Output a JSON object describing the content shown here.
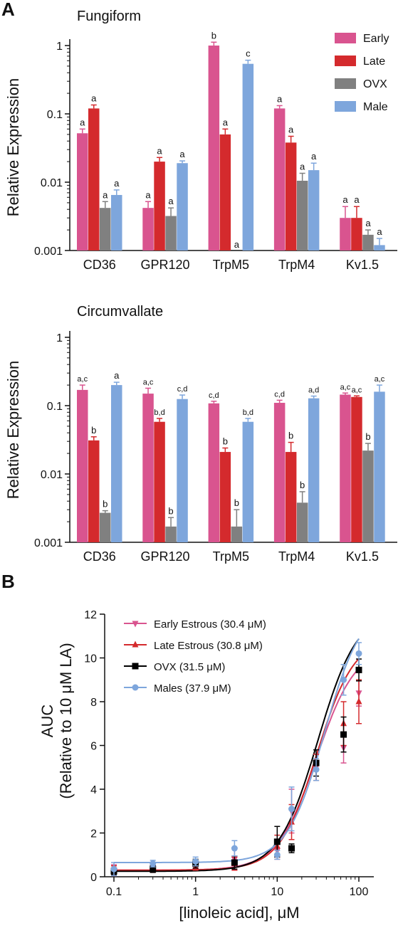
{
  "panel_labels": {
    "a": "A",
    "b": "B"
  },
  "chart_data": [
    {
      "type": "bar",
      "title": "Fungiform",
      "ylabel": "Relative Expression",
      "yscale": "log",
      "ylim": [
        0.001,
        1
      ],
      "yticks": [
        "0.001",
        "0.01",
        "0.1",
        "1"
      ],
      "categories": [
        "CD36",
        "GPR120",
        "TrpM5",
        "TrpM4",
        "Kv1.5"
      ],
      "legend_position": "top-right",
      "series": [
        {
          "name": "Early",
          "color": "#d9548f",
          "values": [
            0.052,
            0.0042,
            1.0,
            0.12,
            0.003
          ],
          "errors": [
            0.008,
            0.001,
            0.12,
            0.012,
            0.0014
          ],
          "labels": [
            "a",
            "a",
            "b",
            "a",
            "a"
          ]
        },
        {
          "name": "Late",
          "color": "#d42a2d",
          "values": [
            0.12,
            0.02,
            0.05,
            0.038,
            0.003
          ],
          "errors": [
            0.015,
            0.003,
            0.01,
            0.009,
            0.0014
          ],
          "labels": [
            "a",
            "a",
            "a",
            "a",
            "a"
          ]
        },
        {
          "name": "OVX",
          "color": "#808080",
          "values": [
            0.0042,
            0.0032,
            null,
            0.0105,
            0.0017
          ],
          "errors": [
            0.001,
            0.001,
            null,
            0.003,
            0.0003
          ],
          "labels": [
            "a",
            "a",
            "a",
            "a",
            "a"
          ]
        },
        {
          "name": "Male",
          "color": "#7ea6dc",
          "values": [
            0.0065,
            0.019,
            0.54,
            0.015,
            0.0012
          ],
          "errors": [
            0.0012,
            0.0015,
            0.07,
            0.004,
            0.0003
          ],
          "labels": [
            "a",
            "a",
            "c",
            "a",
            "a"
          ]
        }
      ]
    },
    {
      "type": "bar",
      "title": "Circumvallate",
      "ylabel": "Relative Expression",
      "yscale": "log",
      "ylim": [
        0.001,
        1
      ],
      "yticks": [
        "0.001",
        "0.01",
        "0.1",
        "1"
      ],
      "categories": [
        "CD36",
        "GPR120",
        "TrpM5",
        "TrpM4",
        "Kv1.5"
      ],
      "series": [
        {
          "name": "Early",
          "color": "#d9548f",
          "values": [
            0.17,
            0.15,
            0.108,
            0.11,
            0.145
          ],
          "errors": [
            0.03,
            0.03,
            0.008,
            0.01,
            0.008
          ],
          "labels": [
            "a,c",
            "a,c",
            "c,d",
            "c,d",
            "a,c"
          ]
        },
        {
          "name": "Late",
          "color": "#d42a2d",
          "values": [
            0.031,
            0.058,
            0.021,
            0.021,
            0.134
          ],
          "errors": [
            0.004,
            0.007,
            0.003,
            0.008,
            0.005
          ],
          "labels": [
            "b",
            "b,d",
            "b",
            "b",
            "a,c"
          ]
        },
        {
          "name": "OVX",
          "color": "#808080",
          "values": [
            0.0027,
            0.0017,
            0.0017,
            0.0038,
            0.022
          ],
          "errors": [
            0.0002,
            0.0006,
            0.0013,
            0.0017,
            0.006
          ],
          "labels": [
            "b",
            "b",
            "b",
            "b",
            "b"
          ]
        },
        {
          "name": "Male",
          "color": "#7ea6dc",
          "values": [
            0.2,
            0.125,
            0.058,
            0.128,
            0.16
          ],
          "errors": [
            0.02,
            0.018,
            0.007,
            0.01,
            0.04
          ],
          "labels": [
            "a",
            "c,d",
            "b,d",
            "a,d",
            "a,c"
          ]
        }
      ]
    },
    {
      "type": "line",
      "xlabel": "[linoleic acid], μM",
      "ylabel_line1": "AUC",
      "ylabel_line2": "(Relative to 10 μM LA)",
      "xscale": "log",
      "xlim": [
        0.1,
        100
      ],
      "ylim": [
        0,
        12
      ],
      "xticks": [
        "0.1",
        "1",
        "10",
        "100"
      ],
      "yticks": [
        "0",
        "2",
        "4",
        "6",
        "8",
        "10",
        "12"
      ],
      "legend_position": "top-left",
      "x": [
        0.1,
        0.3,
        1,
        3,
        10,
        15,
        30,
        65,
        100
      ],
      "series": [
        {
          "name": "Early Estrous (30.4 μM)",
          "color": "#d9548f",
          "marker": "triangle-down",
          "values": [
            0.3,
            0.4,
            0.55,
            0.8,
            1.2,
            3.0,
            5.0,
            5.9,
            8.4
          ],
          "errors": [
            0.25,
            0.15,
            0.15,
            0.5,
            0.4,
            1.0,
            0.6,
            0.7,
            0.6
          ],
          "fit": {
            "bottom": 0.3,
            "top": 10.6,
            "ec50": 30.4,
            "hill": 1.8
          }
        },
        {
          "name": "Late Estrous (30.8 μM)",
          "color": "#d42a2d",
          "marker": "triangle-up",
          "values": [
            0.3,
            0.35,
            0.45,
            0.6,
            1.4,
            2.5,
            5.0,
            7.0,
            8.0
          ],
          "errors": [
            0.2,
            0.15,
            0.15,
            0.3,
            0.5,
            0.8,
            0.6,
            1.0,
            1.0
          ],
          "fit": {
            "bottom": 0.3,
            "top": 11.0,
            "ec50": 30.8,
            "hill": 1.9
          }
        },
        {
          "name": "OVX (31.5 μM)",
          "color": "#000000",
          "marker": "square",
          "values": [
            0.25,
            0.35,
            0.6,
            0.65,
            1.6,
            1.3,
            5.2,
            6.5,
            9.45
          ],
          "errors": [
            0.15,
            0.15,
            0.2,
            0.3,
            0.7,
            0.2,
            0.6,
            0.8,
            0.5
          ],
          "fit": {
            "bottom": 0.25,
            "top": 12.2,
            "ec50": 31.5,
            "hill": 1.8
          }
        },
        {
          "name": "Males (37.9 μM)",
          "color": "#7ea6dc",
          "marker": "circle",
          "values": [
            0.35,
            0.6,
            0.7,
            1.3,
            1.0,
            3.1,
            4.9,
            9.0,
            10.2
          ],
          "errors": [
            0.3,
            0.15,
            0.2,
            0.35,
            0.2,
            1.0,
            0.5,
            0.7,
            0.5
          ],
          "fit": {
            "bottom": 0.65,
            "top": 12.5,
            "ec50": 37.9,
            "hill": 1.9
          }
        }
      ]
    }
  ]
}
